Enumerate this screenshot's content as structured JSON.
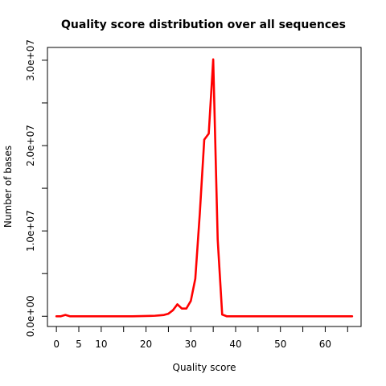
{
  "chart_data": {
    "type": "line",
    "title": "Quality score distribution over all sequences",
    "xlabel": "Quality score",
    "ylabel": "Number of bases",
    "xlim": [
      -2,
      68
    ],
    "ylim": [
      -1200000,
      31500000
    ],
    "xticks": [
      0,
      5,
      10,
      15,
      20,
      25,
      30,
      35,
      40,
      45,
      50,
      55,
      60,
      65
    ],
    "xtick_labels": [
      {
        "value": 0,
        "label": "0"
      },
      {
        "value": 5,
        "label": "5"
      },
      {
        "value": 10,
        "label": "10"
      },
      {
        "value": 20,
        "label": "20"
      },
      {
        "value": 30,
        "label": "30"
      },
      {
        "value": 40,
        "label": "40"
      },
      {
        "value": 50,
        "label": "50"
      },
      {
        "value": 60,
        "label": "60"
      }
    ],
    "yticks": [
      0,
      5000000,
      10000000,
      15000000,
      20000000,
      25000000,
      30000000
    ],
    "ytick_labels": [
      {
        "value": 0,
        "label": "0.0e+00"
      },
      {
        "value": 10000000,
        "label": "1.0e+07"
      },
      {
        "value": 20000000,
        "label": "2.0e+07"
      },
      {
        "value": 30000000,
        "label": "3.0e+07"
      }
    ],
    "grid": false,
    "series": [
      {
        "color": "#ff0000",
        "x": [
          0,
          1,
          2,
          3,
          4,
          5,
          6,
          7,
          8,
          9,
          10,
          11,
          12,
          13,
          14,
          15,
          16,
          17,
          18,
          19,
          20,
          21,
          22,
          23,
          24,
          25,
          26,
          27,
          28,
          29,
          30,
          31,
          32,
          33,
          34,
          35,
          36,
          37,
          38,
          39,
          40,
          41,
          42,
          43,
          44,
          45,
          46,
          47,
          48,
          49,
          50,
          51,
          52,
          53,
          54,
          55,
          56,
          57,
          58,
          59,
          60,
          61,
          62,
          63,
          64,
          65,
          66
        ],
        "y": [
          0,
          0,
          150000,
          0,
          0,
          0,
          0,
          0,
          0,
          0,
          0,
          0,
          0,
          0,
          0,
          0,
          0,
          0,
          10000,
          20000,
          30000,
          40000,
          60000,
          100000,
          150000,
          300000,
          700000,
          1400000,
          900000,
          900000,
          1800000,
          4400000,
          12000000,
          20700000,
          21400000,
          30100000,
          9000000,
          200000,
          0,
          0,
          0,
          0,
          0,
          0,
          0,
          0,
          0,
          0,
          0,
          0,
          0,
          0,
          0,
          0,
          0,
          0,
          0,
          0,
          0,
          0,
          0,
          0,
          0,
          0,
          0,
          0,
          0
        ]
      }
    ]
  }
}
